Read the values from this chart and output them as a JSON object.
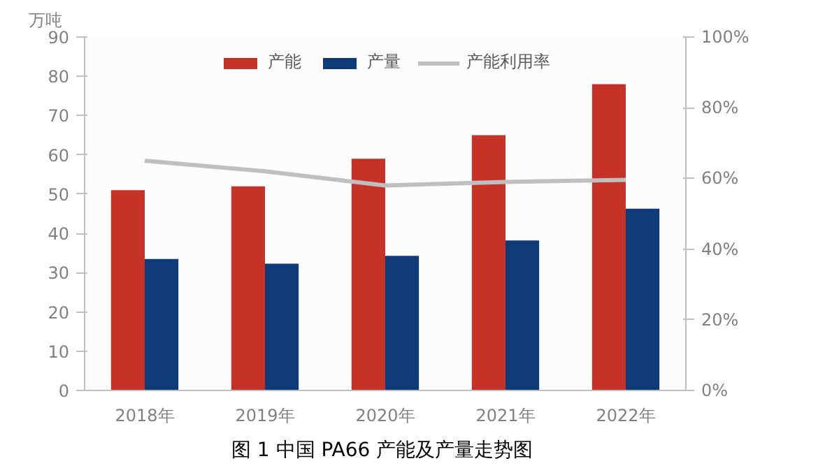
{
  "chart_data": {
    "type": "bar",
    "title": "图 1  中国 PA66 产能及产量走势图",
    "ylabel": "万吨",
    "categories": [
      "2018年",
      "2019年",
      "2020年",
      "2021年",
      "2022年"
    ],
    "series": [
      {
        "name": "产能",
        "color": "#c43228",
        "values": [
          51,
          52,
          59,
          65,
          78
        ]
      },
      {
        "name": "产量",
        "color": "#0f3a78",
        "values": [
          33.5,
          32.3,
          34.3,
          38.2,
          46.3
        ]
      },
      {
        "name": "产能利用率",
        "type": "line",
        "axis": "y2",
        "color": "#bfbfbf",
        "values": [
          65,
          62,
          58,
          59,
          59.6
        ]
      }
    ],
    "ylim": [
      0,
      90
    ],
    "yticks": [
      0,
      10,
      20,
      30,
      40,
      50,
      60,
      70,
      80,
      90
    ],
    "y2lim": [
      0,
      100
    ],
    "y2ticks": [
      {
        "value": 0,
        "label": "0%"
      },
      {
        "value": 20,
        "label": "20%"
      },
      {
        "value": 40,
        "label": "40%"
      },
      {
        "value": 60,
        "label": "60%"
      },
      {
        "value": 80,
        "label": "80%"
      },
      {
        "value": 100,
        "label": "100%"
      }
    ],
    "grid": false,
    "legend": "top"
  }
}
